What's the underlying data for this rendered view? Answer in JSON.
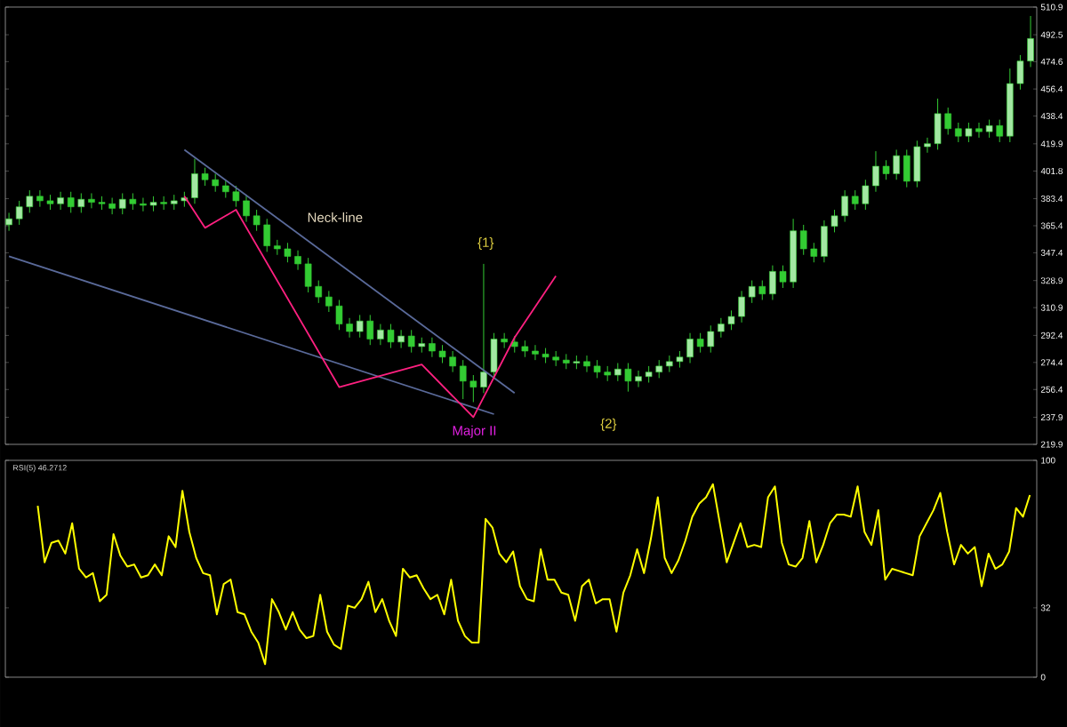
{
  "chart_data": [
    {
      "type": "candlestick",
      "color": "#33cc33",
      "tick_labels": "y",
      "categories": [
        null,
        null,
        null,
        null,
        null,
        null,
        null,
        null,
        null,
        null,
        null,
        null,
        null,
        null,
        null,
        null,
        null,
        null,
        null,
        null,
        null,
        null,
        null,
        null,
        null,
        null,
        null,
        null,
        null,
        null,
        null,
        null,
        null,
        null,
        null,
        null,
        null,
        null,
        null,
        null,
        null,
        null,
        null,
        null,
        null,
        null,
        null,
        null,
        null,
        null,
        null,
        null,
        null,
        null,
        null,
        null,
        null,
        null,
        null,
        null,
        null,
        null,
        null,
        null,
        null,
        null,
        null,
        null,
        null,
        null,
        null,
        null,
        null,
        null,
        null,
        null,
        null,
        null,
        null,
        null,
        null,
        null,
        null,
        null,
        null,
        null,
        null,
        null,
        null,
        null,
        null,
        null,
        null,
        null,
        null,
        null,
        null,
        null,
        null,
        null
      ],
      "ohlc": [
        [
          366,
          374,
          362,
          370
        ],
        [
          370,
          382,
          366,
          378
        ],
        [
          378,
          389,
          374,
          385
        ],
        [
          385,
          389,
          378,
          382
        ],
        [
          382,
          386,
          376,
          380
        ],
        [
          380,
          388,
          376,
          384
        ],
        [
          384,
          388,
          374,
          378
        ],
        [
          378,
          387,
          374,
          383
        ],
        [
          383,
          387,
          377,
          381
        ],
        [
          381,
          385,
          376,
          380
        ],
        [
          380,
          384,
          373,
          377
        ],
        [
          377,
          387,
          373,
          383
        ],
        [
          383,
          387,
          376,
          380
        ],
        [
          380,
          384,
          375,
          379
        ],
        [
          379,
          385,
          375,
          381
        ],
        [
          381,
          385,
          376,
          380
        ],
        [
          380,
          386,
          376,
          382
        ],
        [
          382,
          388,
          378,
          384
        ],
        [
          384,
          410,
          380,
          400
        ],
        [
          400,
          404,
          392,
          396
        ],
        [
          396,
          400,
          388,
          392
        ],
        [
          392,
          396,
          384,
          388
        ],
        [
          388,
          392,
          378,
          382
        ],
        [
          382,
          386,
          368,
          372
        ],
        [
          372,
          376,
          362,
          366
        ],
        [
          366,
          370,
          348,
          352
        ],
        [
          352,
          356,
          346,
          350
        ],
        [
          350,
          354,
          341,
          345
        ],
        [
          345,
          349,
          336,
          340
        ],
        [
          340,
          344,
          321,
          325
        ],
        [
          325,
          329,
          314,
          318
        ],
        [
          318,
          322,
          308,
          312
        ],
        [
          312,
          316,
          296,
          300
        ],
        [
          300,
          304,
          291,
          295
        ],
        [
          295,
          306,
          291,
          302
        ],
        [
          302,
          306,
          286,
          290
        ],
        [
          290,
          300,
          286,
          296
        ],
        [
          296,
          300,
          284,
          288
        ],
        [
          288,
          296,
          284,
          292
        ],
        [
          292,
          296,
          281,
          285
        ],
        [
          285,
          291,
          281,
          287
        ],
        [
          287,
          291,
          278,
          282
        ],
        [
          282,
          286,
          274,
          278
        ],
        [
          278,
          282,
          268,
          272
        ],
        [
          272,
          276,
          250,
          262
        ],
        [
          262,
          266,
          248,
          258
        ],
        [
          258,
          340,
          254,
          268
        ],
        [
          268,
          294,
          264,
          290
        ],
        [
          290,
          294,
          284,
          288
        ],
        [
          288,
          292,
          281,
          285
        ],
        [
          285,
          289,
          278,
          282
        ],
        [
          282,
          286,
          276,
          280
        ],
        [
          280,
          284,
          274,
          278
        ],
        [
          278,
          282,
          272,
          276
        ],
        [
          276,
          280,
          270,
          274
        ],
        [
          274,
          279,
          270,
          275
        ],
        [
          275,
          279,
          268,
          272
        ],
        [
          272,
          276,
          264,
          268
        ],
        [
          268,
          272,
          262,
          266
        ],
        [
          266,
          274,
          262,
          270
        ],
        [
          270,
          274,
          255,
          262
        ],
        [
          262,
          269,
          258,
          265
        ],
        [
          265,
          272,
          261,
          268
        ],
        [
          268,
          276,
          264,
          272
        ],
        [
          272,
          279,
          268,
          275
        ],
        [
          275,
          282,
          271,
          278
        ],
        [
          278,
          294,
          274,
          290
        ],
        [
          290,
          294,
          281,
          285
        ],
        [
          285,
          299,
          281,
          295
        ],
        [
          295,
          304,
          291,
          300
        ],
        [
          300,
          309,
          296,
          305
        ],
        [
          305,
          322,
          301,
          318
        ],
        [
          318,
          329,
          314,
          325
        ],
        [
          325,
          329,
          316,
          320
        ],
        [
          320,
          339,
          316,
          335
        ],
        [
          335,
          339,
          324,
          328
        ],
        [
          328,
          370,
          324,
          362
        ],
        [
          362,
          366,
          346,
          350
        ],
        [
          350,
          354,
          341,
          345
        ],
        [
          345,
          369,
          341,
          365
        ],
        [
          365,
          376,
          361,
          372
        ],
        [
          372,
          389,
          368,
          385
        ],
        [
          385,
          389,
          376,
          380
        ],
        [
          380,
          396,
          376,
          392
        ],
        [
          392,
          415,
          388,
          405
        ],
        [
          405,
          409,
          396,
          400
        ],
        [
          400,
          416,
          396,
          412
        ],
        [
          412,
          416,
          391,
          395
        ],
        [
          395,
          422,
          391,
          418
        ],
        [
          418,
          424,
          414,
          420
        ],
        [
          420,
          450,
          416,
          440
        ],
        [
          440,
          444,
          426,
          430
        ],
        [
          430,
          434,
          421,
          425
        ],
        [
          425,
          434,
          421,
          430
        ],
        [
          430,
          434,
          424,
          428
        ],
        [
          428,
          436,
          424,
          432
        ],
        [
          432,
          436,
          421,
          425
        ],
        [
          425,
          470,
          421,
          460
        ],
        [
          460,
          479,
          456,
          475
        ],
        [
          475,
          505,
          471,
          490
        ]
      ],
      "series": [
        {
          "type": "line",
          "color": "#5a6a9a",
          "values": [
            null,
            null,
            null,
            null,
            null,
            null,
            null,
            null,
            null,
            null,
            null,
            null,
            null,
            null,
            null,
            null,
            null,
            416,
            null,
            null,
            null,
            null,
            null,
            null,
            null,
            null,
            null,
            null,
            null,
            null,
            null,
            null,
            null,
            null,
            null,
            null,
            null,
            null,
            null,
            null,
            null,
            null,
            null,
            null,
            null,
            null,
            null,
            null,
            null,
            254,
            null,
            null,
            null,
            null,
            null,
            null,
            null,
            null,
            null,
            null,
            null,
            null,
            null,
            null,
            null,
            null,
            null,
            null,
            null,
            null,
            null,
            null,
            null,
            null,
            null,
            null,
            null,
            null,
            null,
            null,
            null,
            null,
            null,
            null,
            null,
            null,
            null,
            null,
            null,
            null,
            null,
            null,
            null,
            null,
            null,
            null,
            null,
            null,
            null,
            null
          ]
        },
        {
          "type": "line",
          "color": "#5a6a9a",
          "values": [
            345,
            null,
            null,
            null,
            null,
            null,
            null,
            null,
            null,
            null,
            null,
            null,
            null,
            null,
            null,
            null,
            null,
            null,
            null,
            null,
            null,
            null,
            null,
            null,
            null,
            null,
            null,
            null,
            null,
            null,
            null,
            null,
            null,
            null,
            null,
            null,
            null,
            null,
            null,
            null,
            null,
            null,
            null,
            null,
            null,
            null,
            null,
            240,
            null,
            null,
            null,
            null,
            null,
            null,
            null,
            null,
            null,
            null,
            null,
            null,
            null,
            null,
            null,
            null,
            null,
            null,
            null,
            null,
            null,
            null,
            null,
            null,
            null,
            null,
            null,
            null,
            null,
            null,
            null,
            null,
            null,
            null,
            null,
            null,
            null,
            null,
            null,
            null,
            null,
            null,
            null,
            null,
            null,
            null,
            null,
            null,
            null,
            null,
            null,
            null
          ]
        },
        {
          "type": "line",
          "color": "#ff2080",
          "values": [
            null,
            null,
            null,
            null,
            null,
            null,
            null,
            null,
            null,
            null,
            null,
            null,
            null,
            null,
            null,
            null,
            null,
            385,
            null,
            364,
            null,
            null,
            376,
            null,
            null,
            null,
            null,
            null,
            null,
            null,
            null,
            null,
            258,
            null,
            null,
            null,
            null,
            null,
            null,
            null,
            273,
            null,
            null,
            null,
            null,
            238,
            null,
            null,
            null,
            291,
            null,
            null,
            null,
            332,
            null,
            null,
            null,
            null,
            null,
            null,
            null,
            null,
            null,
            null,
            null,
            null,
            null,
            null,
            null,
            null,
            null,
            null,
            null,
            null,
            null,
            null,
            null,
            null,
            null,
            null,
            null,
            null,
            null,
            null,
            null,
            null,
            null,
            null,
            null,
            null,
            null,
            null,
            null,
            null,
            null,
            null,
            null,
            null,
            null,
            null
          ]
        }
      ],
      "ylim": [
        219.9,
        510.9
      ],
      "yticks": [
        219.9,
        237.9,
        256.4,
        274.4,
        292.4,
        310.9,
        328.9,
        347.4,
        365.4,
        383.4,
        401.8,
        419.9,
        438.4,
        456.4,
        474.6,
        492.5,
        510.9
      ],
      "annotations": [
        "Neck-line",
        "{1}",
        "{2}",
        "Major II"
      ]
    },
    {
      "type": "line",
      "color": "#ffff00",
      "tick_labels": "y",
      "categories": [
        null,
        null,
        null,
        null,
        null,
        null,
        null,
        null,
        null,
        null,
        null,
        null,
        null,
        null,
        null,
        null,
        null,
        null,
        null,
        null,
        null,
        null,
        null,
        null,
        null,
        null,
        null,
        null,
        null,
        null,
        null,
        null,
        null,
        null,
        null,
        null,
        null,
        null,
        null,
        null,
        null,
        null,
        null,
        null,
        null,
        null,
        null,
        null,
        null,
        null,
        null,
        null,
        null,
        null,
        null,
        null,
        null,
        null,
        null,
        null,
        null,
        null,
        null,
        null,
        null,
        null,
        null,
        null,
        null,
        null,
        null,
        null,
        null,
        null,
        null,
        null,
        null,
        null,
        null,
        null,
        null,
        null,
        null,
        null,
        null,
        null,
        null,
        null,
        null,
        null,
        null,
        null,
        null,
        null,
        null,
        null,
        null,
        null,
        null,
        null,
        null,
        null,
        null,
        null,
        null,
        null,
        null,
        null,
        null,
        null,
        null,
        null,
        null,
        null,
        null,
        null,
        null,
        null,
        null,
        null,
        null,
        null,
        null,
        null,
        null,
        null,
        null,
        null,
        null,
        null,
        null,
        null,
        null,
        null,
        null,
        null,
        null,
        null,
        null,
        null,
        null,
        null,
        null,
        null,
        null
      ],
      "values": [
        79,
        53,
        62,
        63,
        57,
        71,
        50,
        46,
        48,
        35,
        38,
        66,
        56,
        51,
        52,
        46,
        47,
        52,
        47,
        65,
        60,
        86,
        67,
        55,
        48,
        47,
        29,
        43,
        45,
        30,
        29,
        21,
        16,
        6,
        36,
        30,
        22,
        30,
        22,
        18,
        19,
        38,
        21,
        15,
        13,
        33,
        32,
        36,
        44,
        30,
        36,
        26,
        19,
        50,
        46,
        47,
        41,
        36,
        38,
        29,
        45,
        26,
        19,
        16,
        16,
        73,
        69,
        57,
        53,
        58,
        42,
        36,
        35,
        59,
        45,
        45,
        39,
        38,
        26,
        42,
        45,
        34,
        36,
        36,
        21,
        39,
        47,
        59,
        48,
        64,
        83,
        55,
        48,
        54,
        63,
        74,
        80,
        83,
        89,
        71,
        53,
        62,
        71,
        60,
        61,
        60,
        83,
        88,
        62,
        52,
        51,
        55,
        72,
        53,
        61,
        71,
        75,
        75,
        74,
        88,
        67,
        61,
        77,
        45,
        50,
        49,
        48,
        47,
        65,
        71,
        77,
        85,
        67,
        52,
        61,
        57,
        60,
        42,
        57,
        50,
        52,
        58,
        78,
        74,
        84
      ],
      "ylim": [
        0,
        100
      ],
      "yticks": [
        0,
        32,
        100
      ],
      "annotations": [
        "RSI(5) 46.2712"
      ]
    }
  ]
}
